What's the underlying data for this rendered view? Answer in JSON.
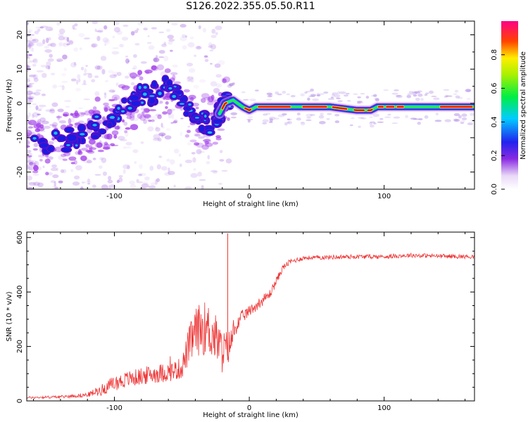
{
  "title": "S126.2022.355.05.50.R11",
  "chart_data": [
    {
      "type": "heatmap",
      "xlabel": "Height of straight line (km)",
      "ylabel": "Frequency (Hz)",
      "xlim": [
        -165,
        167
      ],
      "ylim": [
        -25,
        24
      ],
      "xticks": [
        -100,
        0,
        100
      ],
      "yticks": [
        -20,
        -10,
        0,
        10,
        20
      ],
      "colorbar": {
        "label": "Normalized spectral amplitude",
        "range": [
          0,
          1
        ],
        "ticks": [
          "0.0",
          "0.2",
          "0.4",
          "0.6",
          "0.8"
        ]
      },
      "ridge": {
        "x": [
          -165,
          -150,
          -140,
          -130,
          -120,
          -110,
          -100,
          -90,
          -80,
          -70,
          -60,
          -50,
          -40,
          -30,
          -22,
          -18,
          -12,
          -5,
          0,
          5,
          20,
          40,
          60,
          70,
          80,
          85,
          90,
          95,
          100,
          110,
          120,
          140,
          167
        ],
        "y": [
          -12,
          -12.5,
          -11,
          -10,
          -8,
          -6,
          -4,
          -1,
          2,
          3,
          5,
          0,
          -5,
          -6,
          -3,
          0,
          1,
          -1,
          -2,
          -1,
          -1,
          -1,
          -1,
          -1.5,
          -2,
          -2,
          -2,
          -1,
          -1,
          -1,
          -1,
          -1,
          -1
        ]
      }
    },
    {
      "type": "line",
      "xlabel": "Height of straight line (km)",
      "ylabel": "SNR (10 * v/v)",
      "xlim": [
        -165,
        167
      ],
      "ylim": [
        0,
        620
      ],
      "xticks": [
        -100,
        0,
        100
      ],
      "yticks": [
        0,
        200,
        400,
        600
      ],
      "color": "#ee3333",
      "series": [
        {
          "x": [
            -165,
            -140,
            -120,
            -110,
            -100,
            -90,
            -80,
            -70,
            -60,
            -50,
            -45,
            -40,
            -35,
            -30,
            -25,
            -20,
            -15,
            -10,
            -5,
            0,
            5,
            10,
            15,
            20,
            25,
            30,
            40,
            60,
            80,
            100,
            120,
            140,
            167
          ],
          "values": [
            12,
            15,
            22,
            40,
            65,
            80,
            90,
            100,
            105,
            120,
            200,
            250,
            270,
            260,
            230,
            180,
            200,
            270,
            310,
            330,
            350,
            370,
            390,
            440,
            490,
            510,
            525,
            528,
            530,
            530,
            535,
            532,
            530
          ],
          "noise": [
            4,
            5,
            8,
            20,
            28,
            30,
            32,
            35,
            35,
            40,
            70,
            90,
            100,
            100,
            90,
            80,
            60,
            30,
            25,
            20,
            20,
            20,
            18,
            15,
            12,
            10,
            8,
            8,
            8,
            8,
            8,
            8,
            8
          ]
        }
      ]
    }
  ]
}
